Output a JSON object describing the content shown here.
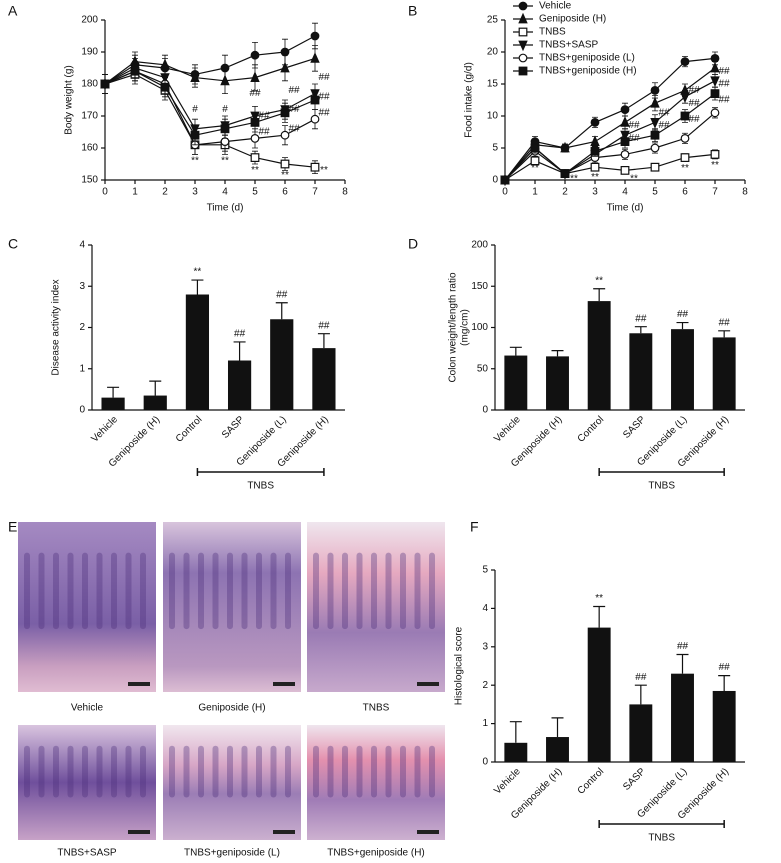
{
  "chart_data": [
    {
      "type": "line",
      "panel": "A",
      "y_label": "Body weight (g)",
      "x_label": "Time (d)",
      "x": [
        0,
        1,
        2,
        3,
        4,
        5,
        6,
        7
      ],
      "xlim": [
        0,
        8
      ],
      "xticks": [
        0,
        1,
        2,
        3,
        4,
        5,
        6,
        7,
        8
      ],
      "ylim": [
        150,
        200
      ],
      "yticks": [
        150,
        160,
        170,
        180,
        190,
        200
      ],
      "series": [
        {
          "marker": "circle",
          "color": "#111111",
          "values": [
            180,
            186,
            185,
            183,
            185,
            189,
            190,
            195
          ],
          "errors": [
            3,
            3,
            3,
            3,
            4,
            4,
            4,
            4
          ]
        },
        {
          "marker": "triangle",
          "color": "#111111",
          "values": [
            180,
            187,
            186,
            182,
            181,
            182,
            185,
            188
          ],
          "errors": [
            3,
            3,
            3,
            3,
            4,
            4,
            4,
            4
          ]
        },
        {
          "marker": "square-open",
          "color": "#111111",
          "values": [
            180,
            183,
            178,
            161,
            161,
            157,
            155,
            154
          ],
          "errors": [
            3,
            3,
            3,
            3,
            3,
            2,
            2,
            2
          ]
        },
        {
          "marker": "triangle-down",
          "color": "#111111",
          "values": [
            180,
            185,
            182,
            166,
            167,
            170,
            172,
            177
          ],
          "errors": [
            3,
            3,
            3,
            3,
            3,
            3,
            3,
            3
          ]
        },
        {
          "marker": "circle-open",
          "color": "#111111",
          "values": [
            180,
            184,
            180,
            161,
            162,
            163,
            164,
            169
          ],
          "errors": [
            3,
            3,
            3,
            3,
            3,
            3,
            3,
            3
          ]
        },
        {
          "marker": "square",
          "color": "#111111",
          "values": [
            180,
            184,
            179,
            164,
            166,
            168,
            171,
            175
          ],
          "errors": [
            3,
            3,
            3,
            3,
            3,
            3,
            3,
            3
          ]
        }
      ],
      "annotations": [
        {
          "text": "**",
          "x": 3,
          "y": 156
        },
        {
          "text": "**",
          "x": 4,
          "y": 156
        },
        {
          "text": "**",
          "x": 5,
          "y": 153
        },
        {
          "text": "**",
          "x": 6,
          "y": 151.5
        },
        {
          "text": "**",
          "x": 7.3,
          "y": 153
        },
        {
          "text": "#",
          "x": 3,
          "y": 172
        },
        {
          "text": "#",
          "x": 4,
          "y": 172
        },
        {
          "text": "##",
          "x": 5,
          "y": 177
        },
        {
          "text": "##",
          "x": 5.3,
          "y": 170
        },
        {
          "text": "##",
          "x": 5.3,
          "y": 165
        },
        {
          "text": "##",
          "x": 6.3,
          "y": 178
        },
        {
          "text": "##",
          "x": 6.3,
          "y": 172
        },
        {
          "text": "##",
          "x": 6.3,
          "y": 166
        },
        {
          "text": "##",
          "x": 7.3,
          "y": 182
        },
        {
          "text": "##",
          "x": 7.3,
          "y": 176
        },
        {
          "text": "##",
          "x": 7.3,
          "y": 171
        }
      ]
    },
    {
      "type": "line",
      "panel": "B",
      "y_label": "Food intake (g/d)",
      "x_label": "Time (d)",
      "x": [
        0,
        1,
        2,
        3,
        4,
        5,
        6,
        7
      ],
      "xlim": [
        0,
        8
      ],
      "xticks": [
        0,
        1,
        2,
        3,
        4,
        5,
        6,
        7,
        8
      ],
      "ylim": [
        0,
        25
      ],
      "yticks": [
        0,
        5,
        10,
        15,
        20,
        25
      ],
      "legend": "top-left",
      "series": [
        {
          "name": "Vehicle",
          "marker": "circle",
          "color": "#111111",
          "values": [
            0,
            6,
            5,
            9,
            11,
            14,
            18.5,
            19
          ],
          "errors": [
            0.3,
            0.8,
            0.6,
            0.8,
            1,
            1.2,
            0.8,
            1
          ]
        },
        {
          "name": "Geniposide (H)",
          "marker": "triangle",
          "color": "#111111",
          "values": [
            0,
            5.5,
            5,
            6,
            9,
            12,
            14,
            17.5
          ],
          "errors": [
            0.3,
            0.8,
            0.6,
            0.8,
            1,
            1.2,
            1,
            1
          ]
        },
        {
          "name": "TNBS",
          "marker": "square-open",
          "color": "#111111",
          "values": [
            0,
            3,
            1,
            2,
            1.5,
            2,
            3.5,
            4
          ],
          "errors": [
            0.3,
            0.6,
            0.4,
            0.5,
            0.5,
            0.6,
            0.6,
            0.7
          ]
        },
        {
          "name": "TNBS+SASP",
          "marker": "triangle-down",
          "color": "#111111",
          "values": [
            0,
            5,
            1,
            4,
            7,
            9,
            13,
            15.5
          ],
          "errors": [
            0.3,
            0.8,
            0.4,
            0.8,
            1,
            1.2,
            1,
            1
          ]
        },
        {
          "name": "TNBS+geniposide (L)",
          "marker": "circle-open",
          "color": "#111111",
          "values": [
            0,
            4.5,
            1,
            3.5,
            4,
            5,
            6.5,
            10.5
          ],
          "errors": [
            0.3,
            0.8,
            0.4,
            0.8,
            0.8,
            0.8,
            0.8,
            0.8
          ]
        },
        {
          "name": "TNBS+geniposide (H)",
          "marker": "square",
          "color": "#111111",
          "values": [
            0,
            5,
            1,
            4.5,
            6,
            7,
            10,
            13.5
          ],
          "errors": [
            0.3,
            0.8,
            0.4,
            0.8,
            1,
            1,
            1,
            1
          ]
        }
      ],
      "annotations": [
        {
          "text": "**",
          "x": 1,
          "y": 1.8
        },
        {
          "text": "**",
          "x": 2.3,
          "y": 0.2
        },
        {
          "text": "**",
          "x": 3,
          "y": 0.4
        },
        {
          "text": "**",
          "x": 4.3,
          "y": 0.2
        },
        {
          "text": "**",
          "x": 6,
          "y": 1.8
        },
        {
          "text": "**",
          "x": 7,
          "y": 2.3
        },
        {
          "text": "##",
          "x": 4.3,
          "y": 8.5
        },
        {
          "text": "##",
          "x": 4.3,
          "y": 6.5
        },
        {
          "text": "##",
          "x": 5.3,
          "y": 10.5
        },
        {
          "text": "##",
          "x": 5.3,
          "y": 8.5
        },
        {
          "text": "##",
          "x": 6.3,
          "y": 14
        },
        {
          "text": "##",
          "x": 6.3,
          "y": 12
        },
        {
          "text": "##",
          "x": 6.3,
          "y": 9.5
        },
        {
          "text": "##",
          "x": 7.3,
          "y": 17
        },
        {
          "text": "##",
          "x": 7.3,
          "y": 15
        },
        {
          "text": "##",
          "x": 7.3,
          "y": 12.5
        }
      ]
    },
    {
      "type": "bar",
      "panel": "C",
      "y_label": "Disease activity index",
      "group_label": "TNBS",
      "categories": [
        "Vehicle",
        "Geniposide (H)",
        "Control",
        "SASP",
        "Geniposide (L)",
        "Geniposide (H)"
      ],
      "values": [
        0.3,
        0.35,
        2.8,
        1.2,
        2.2,
        1.5
      ],
      "errors": [
        0.25,
        0.35,
        0.35,
        0.45,
        0.4,
        0.35
      ],
      "annotations": [
        null,
        null,
        "**",
        "##",
        "##",
        "##"
      ],
      "color": "#111111",
      "ylim": [
        0,
        4
      ],
      "yticks": [
        0,
        1,
        2,
        3,
        4
      ]
    },
    {
      "type": "bar",
      "panel": "D",
      "y_label": "Colon weight/length ratio",
      "y_unit": "(mg/cm)",
      "group_label": "TNBS",
      "categories": [
        "Vehicle",
        "Geniposide (H)",
        "Control",
        "SASP",
        "Geniposide (L)",
        "Geniposide (H)"
      ],
      "values": [
        66,
        65,
        132,
        93,
        98,
        88
      ],
      "errors": [
        10,
        7,
        15,
        8,
        8,
        8
      ],
      "annotations": [
        null,
        null,
        "**",
        "##",
        "##",
        "##"
      ],
      "color": "#111111",
      "ylim": [
        0,
        200
      ],
      "yticks": [
        0,
        50,
        100,
        150,
        200
      ]
    },
    {
      "type": "bar",
      "panel": "F",
      "y_label": "Histological score",
      "group_label": "TNBS",
      "categories": [
        "Vehicle",
        "Geniposide (H)",
        "Control",
        "SASP",
        "Geniposide (L)",
        "Geniposide (H)"
      ],
      "values": [
        0.5,
        0.65,
        3.5,
        1.5,
        2.3,
        1.85
      ],
      "errors": [
        0.55,
        0.5,
        0.55,
        0.5,
        0.5,
        0.4
      ],
      "annotations": [
        null,
        null,
        "**",
        "##",
        "##",
        "##"
      ],
      "color": "#111111",
      "ylim": [
        0,
        5
      ],
      "yticks": [
        0,
        1,
        2,
        3,
        4,
        5
      ]
    }
  ],
  "histology": {
    "panel": "E",
    "captions": [
      "Vehicle",
      "Geniposide (H)",
      "TNBS",
      "TNBS+SASP",
      "TNBS+geniposide (L)",
      "TNBS+geniposide (H)"
    ]
  }
}
